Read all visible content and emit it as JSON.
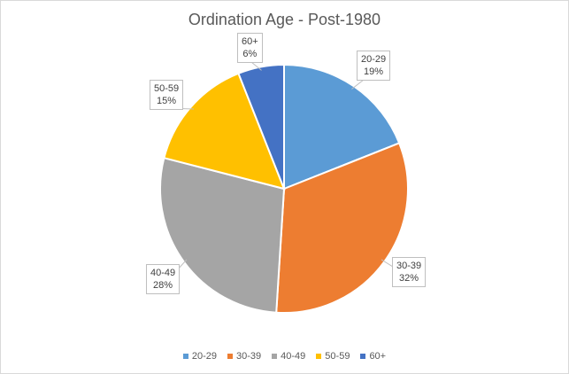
{
  "chart_data": {
    "type": "pie",
    "title": "Ordination Age - Post-1980",
    "categories": [
      "20-29",
      "30-39",
      "40-49",
      "50-59",
      "60+"
    ],
    "values": [
      19,
      32,
      28,
      15,
      6
    ],
    "labels": [
      "19%",
      "32%",
      "28%",
      "15%",
      "6%"
    ],
    "colors": [
      "#5b9bd5",
      "#ed7d31",
      "#a5a5a5",
      "#ffc000",
      "#4472c4"
    ],
    "legend_position": "bottom"
  }
}
